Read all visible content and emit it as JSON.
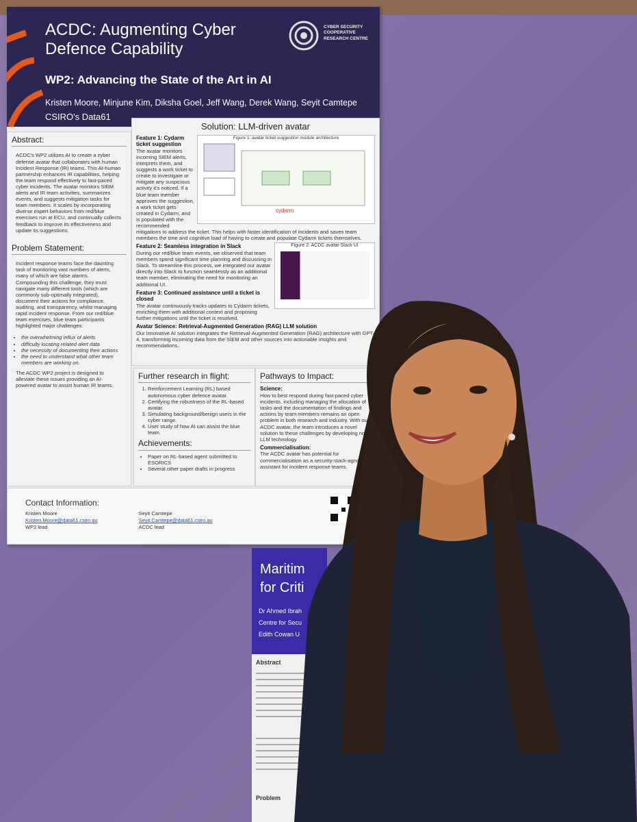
{
  "poster": {
    "title": "ACDC: Augmenting Cyber Defence Capability",
    "org": "CYBER SECURITY COOPERATIVE RESEARCH CENTRE",
    "subtitle": "WP2: Advancing the State of the Art in AI",
    "authors": "Kristen Moore, Minjune Kim, Diksha Goel, Jeff Wang, Derek Wang, Seyit Camtepe",
    "affiliation": "CSIRO's Data61",
    "abstract": {
      "heading": "Abstract:",
      "text": "ACDC's WP2 utilizes AI to create a cyber defense avatar that collaborates with human Incident Response (IR) teams. This AI-human partnership enhances IR capabilities, helping the team respond effectively to fast-paced cyber incidents. The avatar monitors SIEM alerts and IR team activities, summarizes events, and suggests mitigation tasks for team members. It scales by incorporating diverse expert behaviors from red/blue exercises run at ECU, and continually collects feedback to improve its effectiveness and update its suggestions."
    },
    "problem": {
      "heading": "Problem Statement:",
      "text": "Incident response teams face the daunting task of monitoring vast numbers of alerts, many of which are false alarms. Compounding this challenge, they must navigate many different tools (which are commonly sub-optimally integrated), document their actions for compliance, auditing, and transparency, whilst managing rapid incident response. From our red/blue team exercises, blue team participants highlighted major challenges:",
      "bullets": [
        "the overwhelming influx of alerts",
        "difficulty locating related alert data",
        "the necessity of documenting their actions",
        "the need to understand what other team members are working on."
      ],
      "closing": "The ACDC WP2 project is designed to alleviate these issues providing an AI-powered avatar to assist human IR teams."
    },
    "solution": {
      "heading": "Solution: LLM-driven avatar",
      "figure1": "Figure 1: avatar ticket suggestion module architecture",
      "figure2": "Figure 2: ACDC avatar Slack UI",
      "features": [
        {
          "title": "Feature 1: Cydarm ticket suggestion",
          "text": "The avatar monitors incoming SIEM alerts, interprets them, and suggests a work ticket to create to investigate or mitigate any suspicious activity it's noticed. If a blue team member approves the suggestion, a work ticket gets created in Cydarm, and is populated with the recommended mitigations to address the ticket. This helps with faster identification of incidents and saves team members the time and cognitive load of having to create and populate Cydarm tickets themselves."
        },
        {
          "title": "Feature 2: Seamless integration in Slack",
          "text": "During our red/blue team events, we observed that team members spend significant time planning and discussing in Slack. To streamline this process, we integrated our avatar directly into Slack to function seamlessly as an additional team member, eliminating the need for monitoring an additional UI."
        },
        {
          "title": "Feature 3: Continued assistance until a ticket is closed",
          "text": "The avatar continuously tracks updates to Cydarm tickets, enriching them with additional context and proposing further mitigations until the ticket is resolved."
        },
        {
          "title": "Avatar Science: Retrieval-Augmented Generation (RAG) LLM solution",
          "text": "Our innovative AI solution integrates the Retrieval-Augmented Generation (RAG) architecture with GPT-4, transforming incoming data from the SIEM and other sources into actionable insights and recommendations."
        }
      ]
    },
    "further_research": {
      "heading": "Further research in flight:",
      "items": [
        "Reinforcement Learning (RL) based autonomous cyber defence avatar.",
        "Certifying the robustness of the RL-based avatar.",
        "Simulating background/benign users in the cyber range.",
        "User study of how AI can assist the blue team."
      ]
    },
    "achievements": {
      "heading": "Achievements:",
      "items": [
        "Paper on RL-based agent submitted to ESORICS",
        "Several other paper drafts in progress"
      ]
    },
    "pathways": {
      "heading": "Pathways to Impact:",
      "science_heading": "Science:",
      "science": "How to best respond during fast-paced cyber incidents, including managing the allocation of tasks and the documentation of findings and actions by team members remains an open problem in both research and industry. With our ACDC avatar, the team introduces a novel solution to these challenges by developing novel LLM technology.",
      "commercial_heading": "Commercialisation:",
      "commercial": "The ACDC avatar has potential for commercialisation as a security-stack-agnostic AI assistant for incident response teams."
    },
    "contact": {
      "heading": "Contact Information:",
      "people": [
        {
          "name": "Kristen Moore",
          "email": "Kristen.Moore@data61.csiro.au",
          "role": "WP2 lead"
        },
        {
          "name": "Seyit Camtepe",
          "email": "Seyit.Camtepe@data61.csiro.au",
          "role": "ACDC lead"
        }
      ]
    }
  },
  "second_poster": {
    "title_lines": [
      "Maritim",
      "for Criti"
    ],
    "author_lines": [
      "Dr Ahmed Ibrah",
      "Centre for Secu",
      "Edith Cowan U"
    ],
    "abstract_heading": "Abstract",
    "problem_heading": "Problem"
  }
}
